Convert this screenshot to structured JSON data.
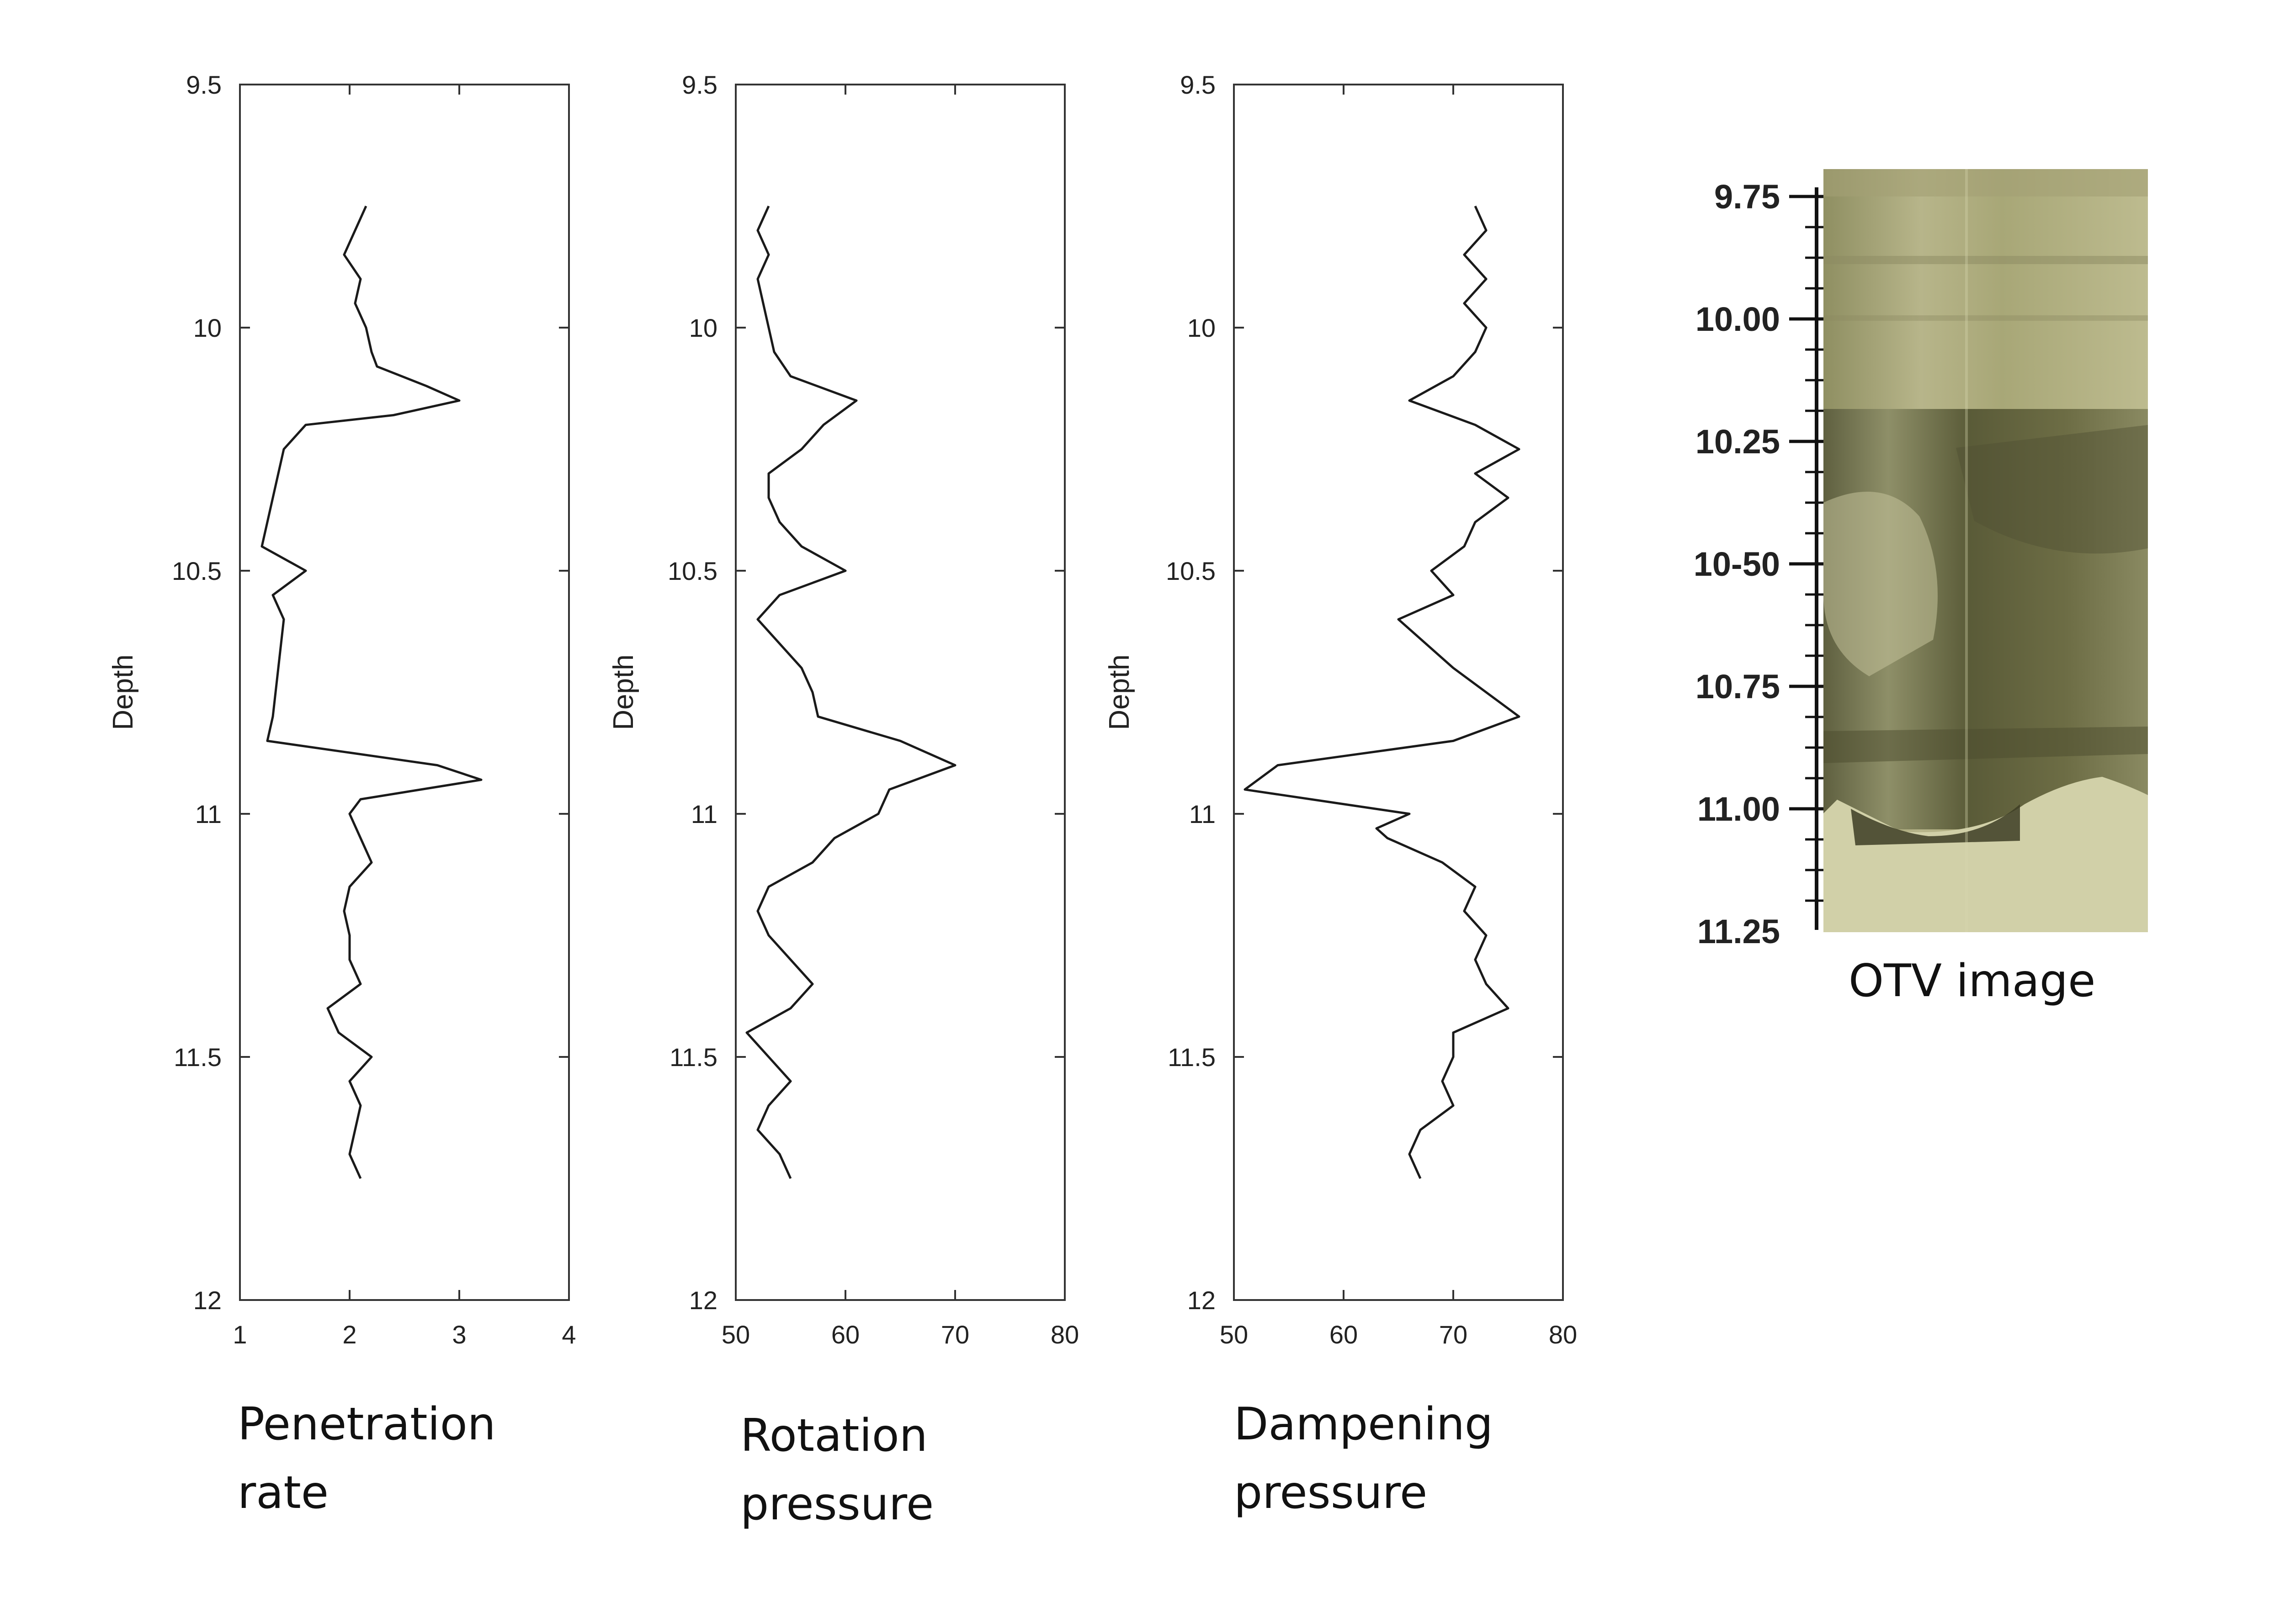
{
  "chart_data": [
    {
      "type": "line",
      "caption_lines": [
        "Penetration",
        "rate"
      ],
      "ylabel": "Depth",
      "xlim": [
        1,
        4
      ],
      "ylim": [
        9.5,
        12
      ],
      "y_inverted": true,
      "xticks": [
        "1",
        "2",
        "3",
        "4"
      ],
      "yticks": [
        "9.5",
        "10",
        "10.5",
        "11",
        "11.5",
        "12"
      ],
      "series": [
        {
          "name": "Penetration rate",
          "depth": [
            9.75,
            9.8,
            9.85,
            9.9,
            9.95,
            10.0,
            10.05,
            10.08,
            10.12,
            10.15,
            10.18,
            10.2,
            10.25,
            10.3,
            10.35,
            10.4,
            10.45,
            10.5,
            10.55,
            10.6,
            10.7,
            10.8,
            10.85,
            10.9,
            10.93,
            10.97,
            11.0,
            11.05,
            11.1,
            11.15,
            11.2,
            11.25,
            11.3,
            11.35,
            11.4,
            11.45,
            11.5,
            11.55,
            11.6,
            11.65,
            11.7,
            11.75
          ],
          "values": [
            2.15,
            2.05,
            1.95,
            2.1,
            2.05,
            2.15,
            2.2,
            2.25,
            2.7,
            3.0,
            2.4,
            1.6,
            1.4,
            1.35,
            1.3,
            1.25,
            1.2,
            1.6,
            1.3,
            1.4,
            1.35,
            1.3,
            1.25,
            2.8,
            3.2,
            2.1,
            2.0,
            2.1,
            2.2,
            2.0,
            1.95,
            2.0,
            2.0,
            2.1,
            1.8,
            1.9,
            2.2,
            2.0,
            2.1,
            2.05,
            2.0,
            2.1
          ]
        }
      ]
    },
    {
      "type": "line",
      "caption_lines": [
        "Rotation",
        "pressure"
      ],
      "ylabel": "Depth",
      "xlim": [
        50,
        80
      ],
      "ylim": [
        9.5,
        12
      ],
      "y_inverted": true,
      "xticks": [
        "50",
        "60",
        "70",
        "80"
      ],
      "yticks": [
        "9.5",
        "10",
        "10.5",
        "11",
        "11.5",
        "12"
      ],
      "series": [
        {
          "name": "Rotation pressure",
          "depth": [
            9.75,
            9.8,
            9.85,
            9.9,
            9.95,
            10.0,
            10.05,
            10.1,
            10.15,
            10.2,
            10.25,
            10.3,
            10.35,
            10.4,
            10.45,
            10.5,
            10.55,
            10.6,
            10.7,
            10.75,
            10.8,
            10.85,
            10.9,
            10.95,
            11.0,
            11.05,
            11.1,
            11.15,
            11.2,
            11.25,
            11.3,
            11.35,
            11.4,
            11.45,
            11.5,
            11.55,
            11.6,
            11.65,
            11.7,
            11.75
          ],
          "values": [
            53,
            52,
            53,
            52,
            52.5,
            53,
            53.5,
            55,
            61,
            58,
            56,
            53,
            53,
            54,
            56,
            60,
            54,
            52,
            56,
            57,
            57.5,
            65,
            70,
            64,
            63,
            59,
            57,
            53,
            52,
            53,
            55,
            57,
            55,
            51,
            53,
            55,
            53,
            52,
            54,
            55
          ]
        }
      ]
    },
    {
      "type": "line",
      "caption_lines": [
        "Dampening",
        "pressure"
      ],
      "ylabel": "Depth",
      "xlim": [
        50,
        80
      ],
      "ylim": [
        9.5,
        12
      ],
      "y_inverted": true,
      "xticks": [
        "50",
        "60",
        "70",
        "80"
      ],
      "yticks": [
        "9.5",
        "10",
        "10.5",
        "11",
        "11.5",
        "12"
      ],
      "series": [
        {
          "name": "Dampening pressure",
          "depth": [
            9.75,
            9.8,
            9.85,
            9.9,
            9.95,
            10.0,
            10.05,
            10.1,
            10.15,
            10.2,
            10.25,
            10.3,
            10.35,
            10.4,
            10.45,
            10.5,
            10.55,
            10.6,
            10.7,
            10.8,
            10.85,
            10.9,
            10.95,
            11.0,
            11.03,
            11.05,
            11.1,
            11.15,
            11.2,
            11.25,
            11.3,
            11.35,
            11.4,
            11.45,
            11.5,
            11.55,
            11.6,
            11.65,
            11.7,
            11.75
          ],
          "values": [
            72,
            73,
            71,
            73,
            71,
            73,
            72,
            70,
            66,
            72,
            76,
            72,
            75,
            72,
            71,
            68,
            70,
            65,
            70,
            76,
            70,
            54,
            51,
            66,
            63,
            64,
            69,
            72,
            71,
            73,
            72,
            73,
            75,
            70,
            70,
            69,
            70,
            67,
            66,
            67
          ]
        }
      ]
    }
  ],
  "otv": {
    "caption": "OTV image",
    "depth_labels": [
      "9.75",
      "10.00",
      "10.25",
      "10-50",
      "10.75",
      "11.00",
      "11.25"
    ]
  }
}
